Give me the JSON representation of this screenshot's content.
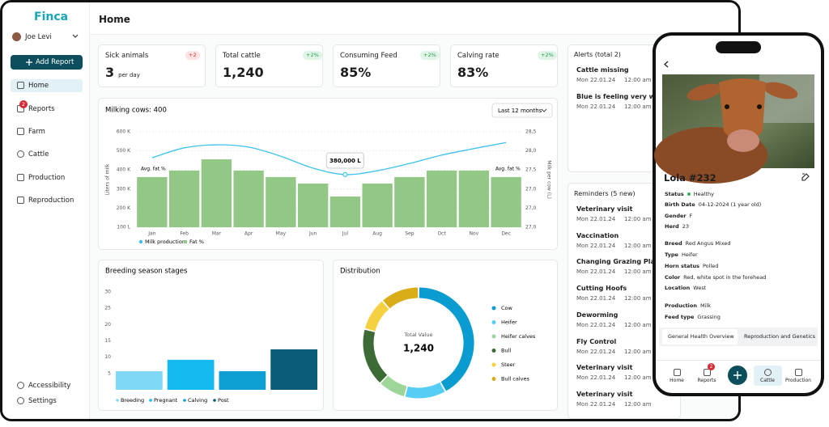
{
  "sidebar": {
    "brand": "Finca",
    "user": "Joe Levi",
    "add_button": "Add Report",
    "nav": [
      {
        "label": "Home"
      },
      {
        "label": "Reports",
        "badge": "2"
      },
      {
        "label": "Farm"
      },
      {
        "label": "Cattle"
      },
      {
        "label": "Production"
      },
      {
        "label": "Reproduction"
      }
    ],
    "footer": [
      "Accessibility",
      "Settings"
    ]
  },
  "header": {
    "title": "Home"
  },
  "stats": [
    {
      "label": "Sick animals",
      "change": "+2",
      "value": "3",
      "unit": "per day"
    },
    {
      "label": "Total cattle",
      "change": "+2%",
      "value": "1,240"
    },
    {
      "label": "Consuming Feed",
      "change": "+2%",
      "value": "85%"
    },
    {
      "label": "Calving rate",
      "change": "+2%",
      "value": "83%"
    }
  ],
  "milking_chart": {
    "type": "bar",
    "title": "Milking cows: 400",
    "period": "Last 12 months",
    "categories": [
      "Jan",
      "Feb",
      "Mar",
      "Apr",
      "May",
      "Jun",
      "Jul",
      "Aug",
      "Sep",
      "Oct",
      "Nov",
      "Dec"
    ],
    "y_label": "Liters of milk",
    "y2_label": "Milk per cow (L)",
    "series": [
      {
        "name": "Milk production",
        "color": "#93c785",
        "values": [
          363,
          397,
          456,
          397,
          363,
          329,
          261,
          329,
          363,
          397,
          397,
          363
        ]
      },
      {
        "name": "Fat %",
        "color": "#3cc3ec",
        "axis": "y2",
        "type": "line",
        "values": [
          27.82,
          28.08,
          28.16,
          28.1,
          27.86,
          27.55,
          27.38,
          27.48,
          27.67,
          27.89,
          28.06,
          28.22
        ]
      }
    ],
    "ylim": [
      100,
      600
    ],
    "yticks": [
      {
        "value": 100,
        "label": "100 L"
      },
      {
        "value": 200,
        "label": "200 K"
      },
      {
        "value": 300,
        "label": "300 K"
      },
      {
        "value": 400,
        "label": "400 K"
      },
      {
        "value": 500,
        "label": "500 K"
      },
      {
        "value": 600,
        "label": "600 K"
      }
    ],
    "y2lim": [
      26,
      28.5
    ],
    "y2_tick_labels": [
      "28,5",
      "28,0",
      "27,5",
      "27,0",
      "27,0",
      "27,0"
    ],
    "annotations": [
      "Avg. fat %",
      "Avg. fat %"
    ],
    "callout": "380,000 L"
  },
  "breeding_chart": {
    "type": "bar",
    "title": "Breeding season stages",
    "categories": [
      "Breeding",
      "Pregnant",
      "Calving",
      "Post"
    ],
    "values": [
      5.7,
      9.2,
      5.7,
      12.4
    ],
    "colors": [
      "#7fd9f6",
      "#14baf0",
      "#0ea0d2",
      "#0b5a78"
    ],
    "ylim": [
      0,
      30
    ],
    "yticks": [
      5,
      10,
      15,
      20,
      25,
      30
    ]
  },
  "distribution_chart": {
    "type": "donut",
    "title": "Distribution",
    "center_label": "Total Value",
    "center_value": "1,240",
    "categories": [
      "Cow",
      "Heifer",
      "Heifer calves",
      "Bull",
      "Steer",
      "Bull calves"
    ],
    "values": [
      520,
      150,
      100,
      210,
      120,
      140
    ],
    "colors": [
      "#0a9bd0",
      "#55cdf5",
      "#9ed69a",
      "#3d6b35",
      "#f5d142",
      "#d9ad1a"
    ]
  },
  "alerts": {
    "title": "Alerts (total 2)",
    "items": [
      {
        "title": "Cattle missing",
        "date": "Mon 22.01.24",
        "time": "12:00 am"
      },
      {
        "title": "Blue is feeling very weak",
        "date": "Mon 22.01.24",
        "time": "12:00 am"
      }
    ]
  },
  "reminders": {
    "title": "Reminders (5 new)",
    "items": [
      {
        "title": "Veterinary visit",
        "date": "Mon 22.01.24",
        "time": "12:00 am"
      },
      {
        "title": "Vaccination",
        "date": "Mon 22.01.24",
        "time": "12:00 am"
      },
      {
        "title": "Changing Grazing Place",
        "date": "Mon 22.01.24",
        "time": "12:00 am"
      },
      {
        "title": "Cutting Hoofs",
        "date": "Mon 22.01.24",
        "time": "12:00 am"
      },
      {
        "title": "Deworming",
        "date": "Mon 22.01.24",
        "time": "12:00 am"
      },
      {
        "title": "Fly Control",
        "date": "Mon 22.01.24",
        "time": "12:00 am"
      },
      {
        "title": "Veterinary visit",
        "date": "Mon 22.01.24",
        "time": "12:00 am"
      },
      {
        "title": "Veterinary visit",
        "date": "Mon 22.01.24",
        "time": "12:00 am"
      }
    ]
  },
  "phone": {
    "name": "Lola #232",
    "fields": [
      [
        {
          "label": "Status",
          "value": "Healthy"
        },
        {
          "label": "Birth Date",
          "value": "04-12-2024 (1 year old)"
        },
        {
          "label": "Gender",
          "value": "F"
        },
        {
          "label": "Herd",
          "value": "23"
        }
      ],
      [
        {
          "label": "Breed",
          "value": "Red Angus Mixed"
        },
        {
          "label": "Type",
          "value": "Heifer"
        },
        {
          "label": "Horn status",
          "value": "Polled"
        },
        {
          "label": "Color",
          "value": "Red, white spot in the forehead"
        },
        {
          "label": "Location",
          "value": "West"
        }
      ],
      [
        {
          "label": "Production",
          "value": "Milk"
        },
        {
          "label": "Feed type",
          "value": "Grassing"
        }
      ]
    ],
    "tabs": [
      "General Health Overview",
      "Reproduction and Genetics"
    ],
    "nav": [
      {
        "label": "Home"
      },
      {
        "label": "Reports",
        "badge": "2"
      },
      {
        "label": "Cattle"
      },
      {
        "label": "Production"
      }
    ]
  }
}
